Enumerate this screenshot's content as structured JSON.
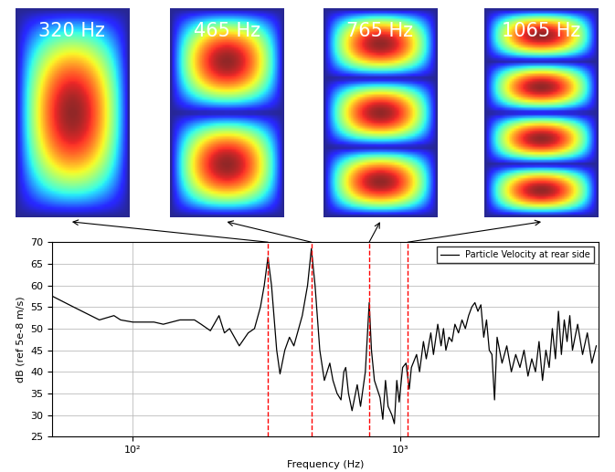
{
  "chart_data": {
    "type": "line",
    "x_label": "Frequency (Hz)",
    "y_label": "dB (ref 5e-8 m/s)",
    "log": "x",
    "grid": true,
    "legend": "upper right",
    "xlim": [
      50,
      5500
    ],
    "ylim": [
      25,
      70
    ],
    "xticks": [
      {
        "value": 100,
        "label": "10²"
      },
      {
        "value": 1000,
        "label": "10³"
      }
    ],
    "yticks": [
      25,
      30,
      35,
      40,
      45,
      50,
      55,
      60,
      65,
      70
    ],
    "series": [
      {
        "name": "Particle Velocity at rear side",
        "color": "#000000",
        "line_style": "solid",
        "x": [
          50,
          60,
          75,
          85,
          90,
          100,
          120,
          130,
          150,
          170,
          180,
          195,
          210,
          220,
          230,
          250,
          270,
          285,
          300,
          310,
          320,
          330,
          345,
          355,
          370,
          385,
          400,
          430,
          450,
          465,
          480,
          500,
          520,
          545,
          560,
          580,
          600,
          615,
          625,
          640,
          660,
          690,
          710,
          740,
          765,
          780,
          800,
          840,
          860,
          880,
          900,
          930,
          950,
          970,
          990,
          1020,
          1050,
          1080,
          1100,
          1150,
          1180,
          1220,
          1250,
          1300,
          1330,
          1380,
          1420,
          1450,
          1480,
          1520,
          1560,
          1600,
          1650,
          1700,
          1750,
          1800,
          1850,
          1900,
          1950,
          2000,
          2050,
          2100,
          2150,
          2200,
          2250,
          2300,
          2400,
          2500,
          2600,
          2700,
          2800,
          2900,
          3000,
          3100,
          3200,
          3300,
          3400,
          3500,
          3600,
          3700,
          3800,
          3900,
          4000,
          4100,
          4200,
          4300,
          4400,
          4600,
          4800,
          5000,
          5200,
          5400
        ],
        "values": [
          57.5,
          55,
          52,
          53,
          52,
          51.5,
          51.5,
          51,
          52,
          52,
          51,
          49.5,
          53,
          49,
          50,
          46,
          49,
          50,
          55,
          60,
          66.5,
          60,
          45,
          39.5,
          45,
          48,
          46,
          53,
          60,
          68.5,
          60,
          45,
          38,
          42,
          38,
          35,
          33.5,
          40,
          41,
          35,
          31,
          37,
          32,
          40,
          56,
          45,
          38,
          34,
          29,
          38,
          32,
          30,
          28,
          38,
          33,
          41,
          42,
          36,
          41,
          44,
          40,
          47,
          43,
          49,
          44,
          51,
          46,
          50,
          45,
          48,
          47,
          51,
          49,
          52,
          50,
          53,
          55,
          56,
          54,
          55.5,
          48,
          52,
          45,
          44,
          33.5,
          48,
          42,
          46,
          40,
          44,
          41,
          45,
          39,
          43,
          40,
          47,
          38,
          45,
          41,
          50,
          43,
          54,
          44,
          52,
          47,
          53,
          45,
          51,
          44,
          49,
          42,
          46
        ]
      }
    ]
  },
  "panels": [
    {
      "label": "320 Hz",
      "frequency": 320,
      "antinodes": 1
    },
    {
      "label": "465 Hz",
      "frequency": 465,
      "antinodes": 2
    },
    {
      "label": "765 Hz",
      "frequency": 765,
      "antinodes": 3
    },
    {
      "label": "1065 Hz",
      "frequency": 1065,
      "antinodes": 4
    }
  ]
}
